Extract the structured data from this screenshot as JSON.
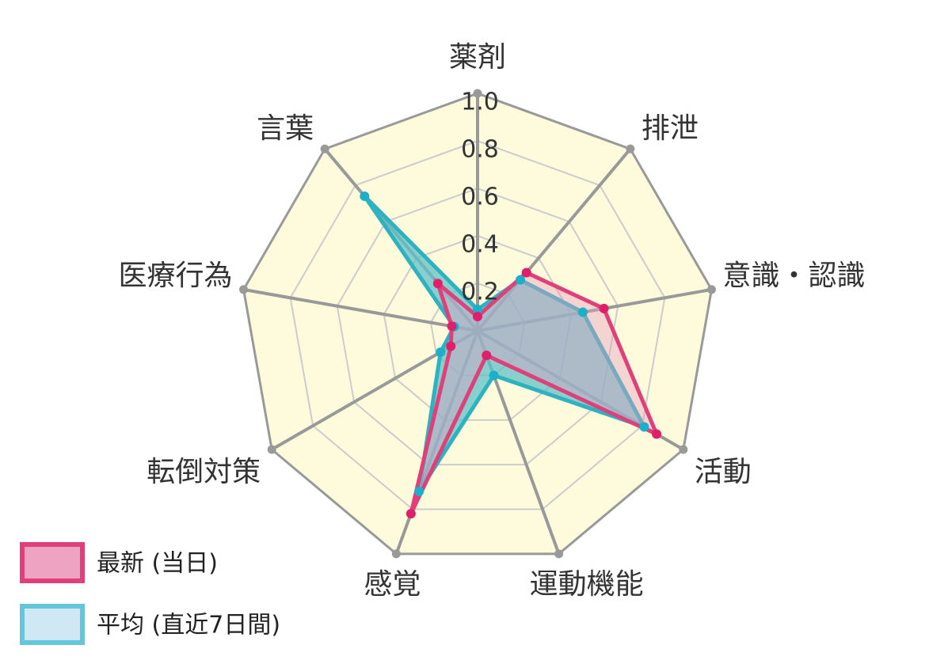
{
  "chart_data": {
    "type": "radar",
    "axes": [
      "薬剤",
      "排泄",
      "意識・認識",
      "活動",
      "運動機能",
      "感覚",
      "転倒対策",
      "医療行為",
      "言葉"
    ],
    "ticks": [
      "0.2",
      "0.4",
      "0.6",
      "0.8",
      "1.0"
    ],
    "range": [
      0,
      1
    ],
    "series": [
      {
        "name": "平均 (直近7日間)",
        "values": [
          0.09,
          0.28,
          0.45,
          0.81,
          0.2,
          0.72,
          0.18,
          0.1,
          0.74
        ],
        "fill": "#5fc2c9",
        "stroke": "#2eb2bf",
        "point": "#1ab0c9"
      },
      {
        "name": "最新 (当日)",
        "values": [
          0.06,
          0.32,
          0.54,
          0.87,
          0.11,
          0.82,
          0.13,
          0.11,
          0.26
        ],
        "fill": "#e79bc1",
        "stroke": "#e0407a",
        "point": "#e01e6c"
      }
    ],
    "legend": [
      {
        "label": "最新 (当日)",
        "fill": "#efa3c3",
        "stroke": "#e0407a"
      },
      {
        "label": "平均 (直近7日間)",
        "fill": "#cfe8f3",
        "stroke": "#63c6dd"
      }
    ],
    "background_fill": "#fdfbdc",
    "grid_color": "#cccccc",
    "axis_color": "#999999"
  }
}
